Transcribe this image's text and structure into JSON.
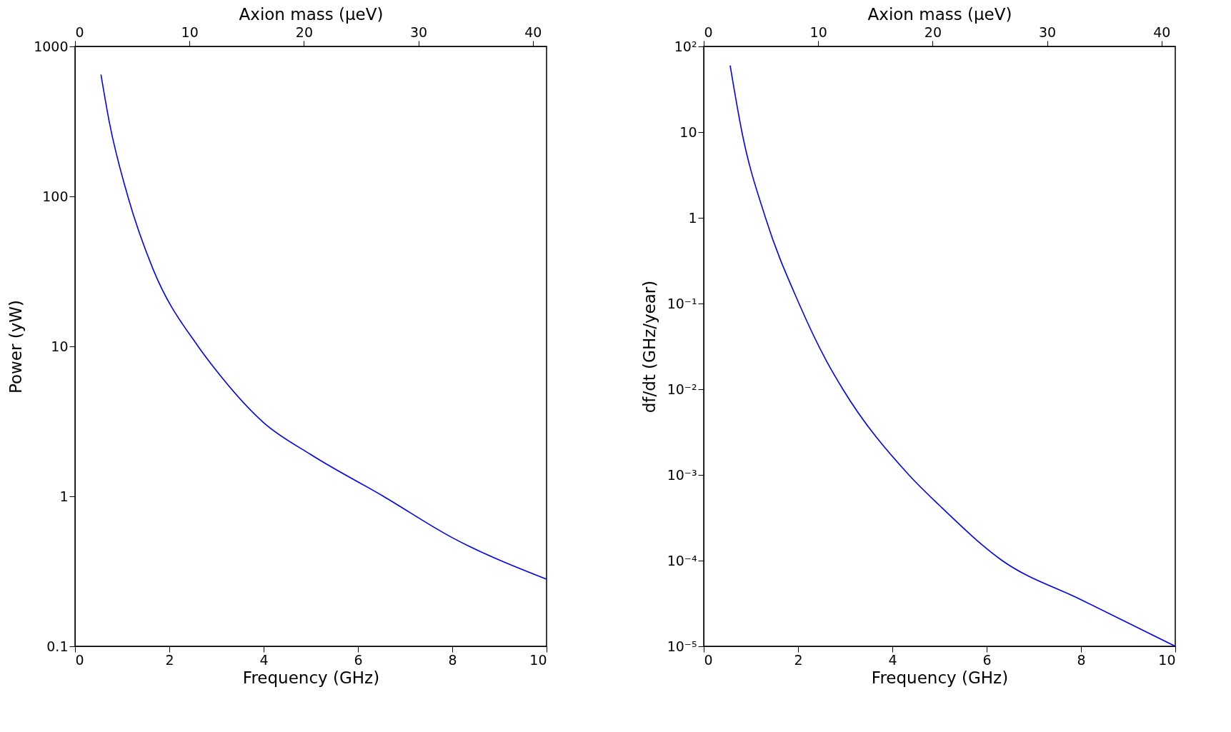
{
  "chart_data": [
    {
      "type": "line",
      "xlabel": "Frequency (GHz)",
      "ylabel": "Power (yW)",
      "x2label": "Axion mass (μeV)",
      "series": [
        {
          "color": "#0000ff",
          "x": [
            0.55,
            0.73,
            1.12,
            1.65,
            2.61,
            2.98,
            4,
            5,
            6.54,
            8,
            10
          ],
          "values": [
            650,
            310,
            100,
            33,
            10,
            7,
            3.1,
            1.9,
            1,
            0.53,
            0.28
          ]
        }
      ],
      "log": "y",
      "xlim": [
        0,
        10
      ],
      "xticks": [
        0,
        2,
        4,
        6,
        8,
        10
      ],
      "ylim": [
        0.1,
        1000
      ],
      "yticks": [
        0.1,
        1,
        10,
        100,
        {
          "value": 1000,
          "label": "1000"
        }
      ],
      "x2lim": [
        0,
        41.2
      ],
      "x2ticks": [
        0,
        10,
        20,
        30,
        40
      ],
      "grid": false,
      "legend": false
    },
    {
      "type": "line",
      "xlabel": "Frequency (GHz)",
      "ylabel": "df/dt (GHz/year)",
      "x2label": "Axion mass (μeV)",
      "series": [
        {
          "color": "#0000ff",
          "x": [
            0.56,
            0.81,
            1.31,
            2.02,
            2.59,
            2.95,
            4.35,
            5,
            6.33,
            8,
            10
          ],
          "values": [
            60,
            10,
            1,
            0.1,
            0.022,
            0.01,
            0.001,
            0.00044,
            0.0001,
            3.5e-05,
            1e-05
          ]
        }
      ],
      "log": "y",
      "xlim": [
        0,
        10
      ],
      "xticks": [
        0,
        2,
        4,
        6,
        8,
        10
      ],
      "ylim": [
        1e-05,
        100
      ],
      "yticks": [
        {
          "value": 1e-05,
          "label": "10⁻⁵"
        },
        {
          "value": 0.0001,
          "label": "10⁻⁴"
        },
        {
          "value": 0.001,
          "label": "10⁻³"
        },
        {
          "value": 0.01,
          "label": "10⁻²"
        },
        {
          "value": 0.1,
          "label": "10⁻¹"
        },
        1,
        10,
        {
          "value": 100,
          "label": "10²"
        }
      ],
      "x2lim": [
        0,
        41.2
      ],
      "x2ticks": [
        0,
        10,
        20,
        30,
        40
      ],
      "grid": false,
      "legend": false
    }
  ]
}
